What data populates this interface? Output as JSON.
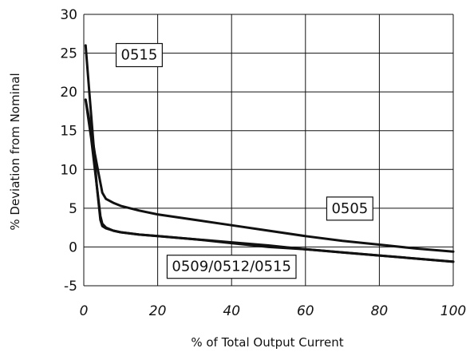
{
  "chart_data": {
    "type": "line",
    "xlabel": "% of Total Output Current",
    "ylabel": "% Deviation from Nominal",
    "xlim": [
      0,
      100
    ],
    "ylim": [
      -5,
      30
    ],
    "x_ticks": [
      "0",
      "20",
      "40",
      "60",
      "80",
      "100"
    ],
    "y_ticks": [
      "-5",
      "0",
      "5",
      "10",
      "15",
      "20",
      "25",
      "30"
    ],
    "grid": true,
    "series": [
      {
        "name": "0505",
        "x": [
          0.5,
          2,
          3,
          4,
          5,
          6,
          8,
          10,
          15,
          20,
          30,
          40,
          50,
          60,
          70,
          80,
          90,
          100
        ],
        "y": [
          19,
          15,
          12,
          9.5,
          7,
          6.2,
          5.7,
          5.3,
          4.7,
          4.2,
          3.5,
          2.8,
          2.1,
          1.4,
          0.8,
          0.3,
          -0.2,
          -0.6
        ]
      },
      {
        "name": "0515",
        "x": [
          0.5,
          1.5,
          2.5,
          3.5,
          4.5,
          5,
          6,
          8,
          10,
          15,
          20,
          30,
          40,
          50,
          60,
          70,
          80,
          90,
          100
        ],
        "y": [
          26,
          20,
          14,
          8,
          3.5,
          2.7,
          2.4,
          2.1,
          1.9,
          1.6,
          1.4,
          1.0,
          0.5,
          0.0,
          -0.3,
          -0.7,
          -1.1,
          -1.5,
          -1.9
        ]
      },
      {
        "name": "0509/0512/0515",
        "x": [
          0.5,
          2,
          3,
          4,
          4.5,
          5,
          6,
          8,
          10,
          15,
          20,
          30,
          40,
          50,
          60,
          70,
          80,
          90,
          100
        ],
        "y": [
          19,
          14,
          10,
          6,
          4,
          3.0,
          2.5,
          2.1,
          1.9,
          1.6,
          1.4,
          1.0,
          0.6,
          0.2,
          -0.3,
          -0.7,
          -1.1,
          -1.5,
          -1.9
        ]
      }
    ],
    "annotations": [
      {
        "text": "0515",
        "x": 15,
        "y": 24.8
      },
      {
        "text": "0505",
        "x": 72,
        "y": 5
      },
      {
        "text": "0509/0512/0515",
        "x": 40,
        "y": -2.5
      }
    ]
  }
}
